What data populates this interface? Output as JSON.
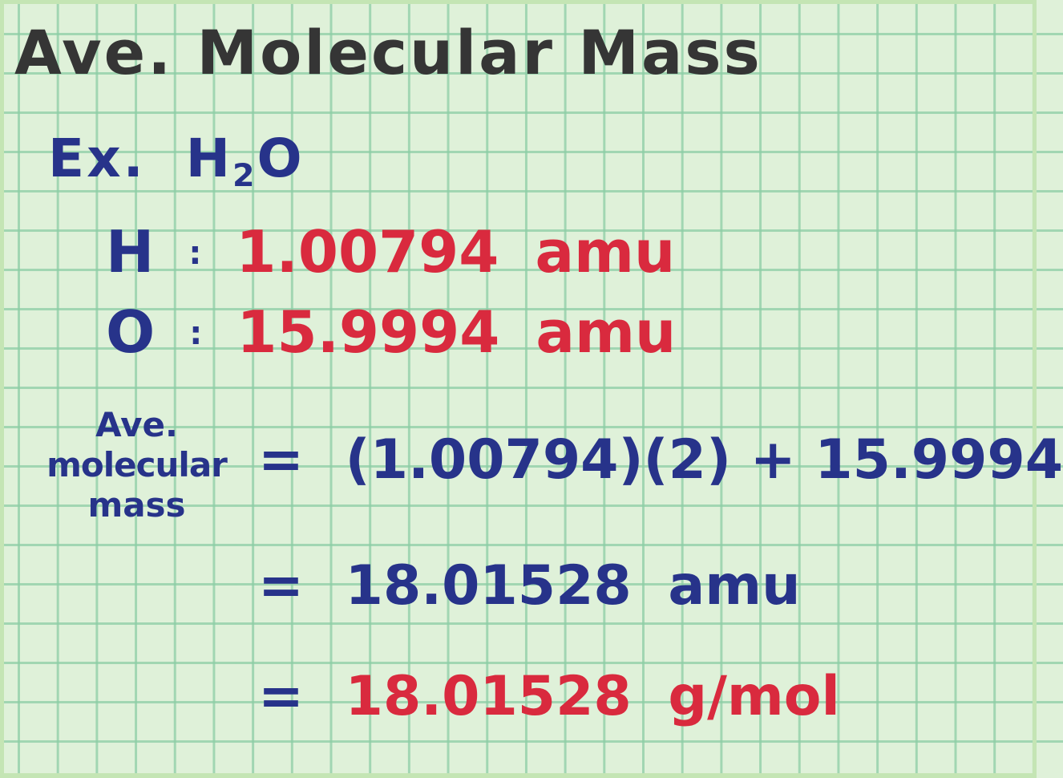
{
  "title": "Ave. Molecular Mass",
  "example": {
    "prefix": "Ex.",
    "formula_main": "H",
    "formula_sub": "2",
    "formula_end": "O"
  },
  "elements": [
    {
      "symbol": "H",
      "sep": ":",
      "value": "1.00794",
      "unit": "amu"
    },
    {
      "symbol": "O",
      "sep": ":",
      "value": "15.9994",
      "unit": "amu"
    }
  ],
  "label": {
    "line1": "Ave.",
    "line2": "molecular",
    "line3": "mass"
  },
  "equations": [
    {
      "eq": "=",
      "expr": "(1.00794)(2) + 15.9994"
    },
    {
      "eq": "=",
      "value": "18.01528",
      "unit": "amu"
    },
    {
      "eq": "=",
      "value": "18.01528",
      "unit": "g/mol"
    }
  ],
  "colors": {
    "title": "#353535",
    "blue": "#27338a",
    "red": "#d92a3e",
    "paper": "#dff1d9",
    "grid": "#8ccda5"
  }
}
